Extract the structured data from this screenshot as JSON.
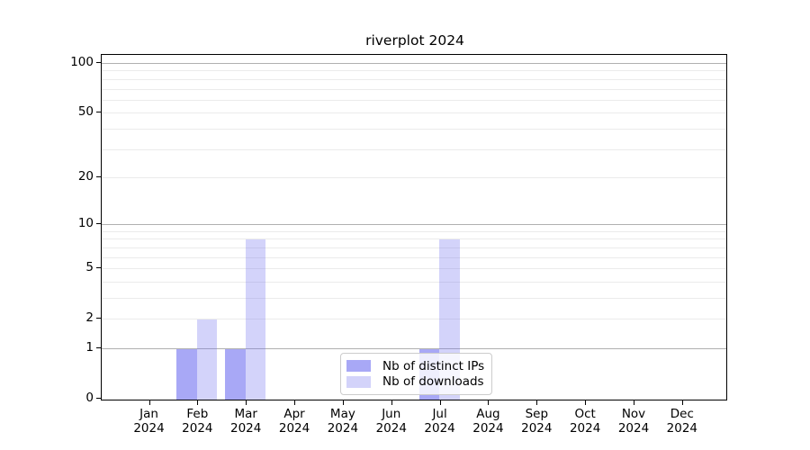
{
  "chart_data": {
    "type": "bar",
    "title": "riverplot 2024",
    "categories": [
      "Jan 2024",
      "Feb 2024",
      "Mar 2024",
      "Apr 2024",
      "May 2024",
      "Jun 2024",
      "Jul 2024",
      "Aug 2024",
      "Sep 2024",
      "Oct 2024",
      "Nov 2024",
      "Dec 2024"
    ],
    "series": [
      {
        "name": "Nb of distinct IPs",
        "color": "rgba(110,110,240,0.6)",
        "swatch_hex": "#a8a8f6",
        "values": [
          0,
          1,
          1,
          0,
          0,
          0,
          1,
          0,
          0,
          0,
          0,
          0
        ]
      },
      {
        "name": "Nb of downloads",
        "color": "rgba(110,110,240,0.3)",
        "swatch_hex": "#d9d9f8",
        "values": [
          0,
          2,
          8,
          0,
          0,
          0,
          8,
          0,
          0,
          0,
          0,
          0
        ]
      }
    ],
    "yscale": "log1p",
    "ylim": [
      0,
      112
    ],
    "yticks": [
      0,
      1,
      2,
      5,
      10,
      20,
      50,
      100
    ],
    "major_gridlines": [
      1,
      10,
      100
    ],
    "minor_gridlines": [
      2,
      3,
      4,
      5,
      6,
      7,
      8,
      9,
      20,
      30,
      40,
      50,
      60,
      70,
      80,
      90
    ],
    "grid": "on",
    "legend_position": "lower center",
    "colors": {
      "axis": "#000000",
      "major_grid": "#b0b0b0",
      "minor_grid": "#ebebeb",
      "legend_border": "#cccccc"
    }
  }
}
